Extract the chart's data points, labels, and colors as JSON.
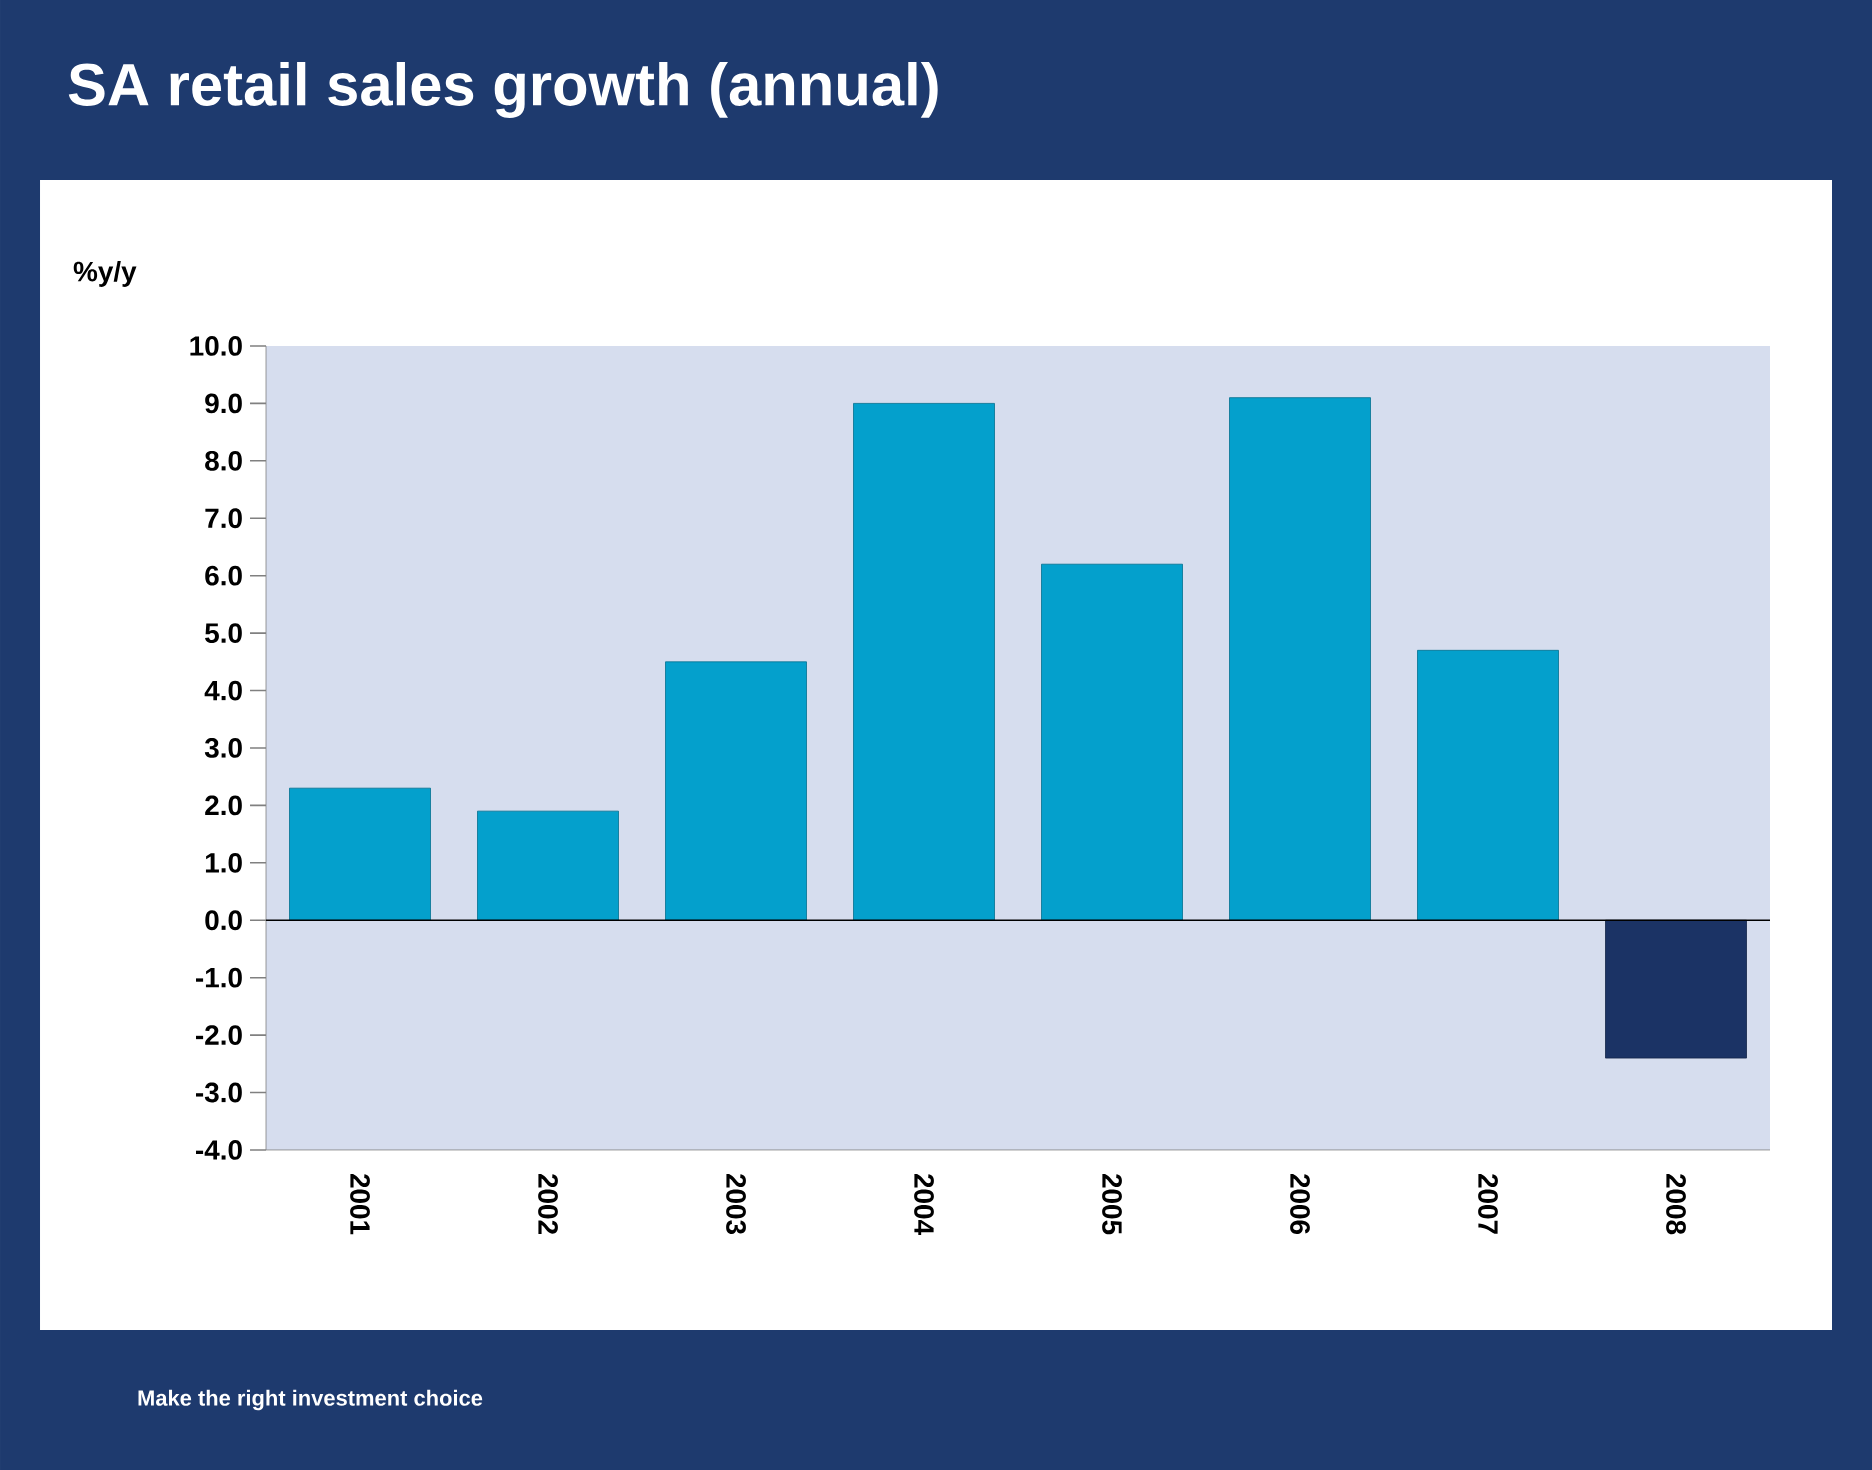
{
  "chart_data": {
    "type": "bar",
    "title": "SA retail sales growth (annual)",
    "ylabel": "%y/y",
    "categories": [
      "2001",
      "2002",
      "2003",
      "2004",
      "2005",
      "2006",
      "2007",
      "2008"
    ],
    "values": [
      2.3,
      1.9,
      4.5,
      9.0,
      6.2,
      9.1,
      4.7,
      -2.4
    ],
    "colors": [
      "#04a0cc",
      "#04a0cc",
      "#04a0cc",
      "#04a0cc",
      "#04a0cc",
      "#04a0cc",
      "#04a0cc",
      "#1b3365"
    ],
    "ylim": [
      -4,
      10
    ],
    "yticks": [
      {
        "value": -4,
        "label": "-4.0"
      },
      {
        "value": -3,
        "label": "-3.0"
      },
      {
        "value": -2,
        "label": "-2.0"
      },
      {
        "value": -1,
        "label": "-1.0"
      },
      {
        "value": 0,
        "label": "0.0"
      },
      {
        "value": 1,
        "label": "1.0"
      },
      {
        "value": 2,
        "label": "2.0"
      },
      {
        "value": 3,
        "label": "3.0"
      },
      {
        "value": 4,
        "label": "4.0"
      },
      {
        "value": 5,
        "label": "5.0"
      },
      {
        "value": 6,
        "label": "6.0"
      },
      {
        "value": 7,
        "label": "7.0"
      },
      {
        "value": 8,
        "label": "8.0"
      },
      {
        "value": 9,
        "label": "9.0"
      },
      {
        "value": 10,
        "label": "10.0"
      }
    ],
    "annotations": [
      "Make the right investment choice"
    ]
  }
}
